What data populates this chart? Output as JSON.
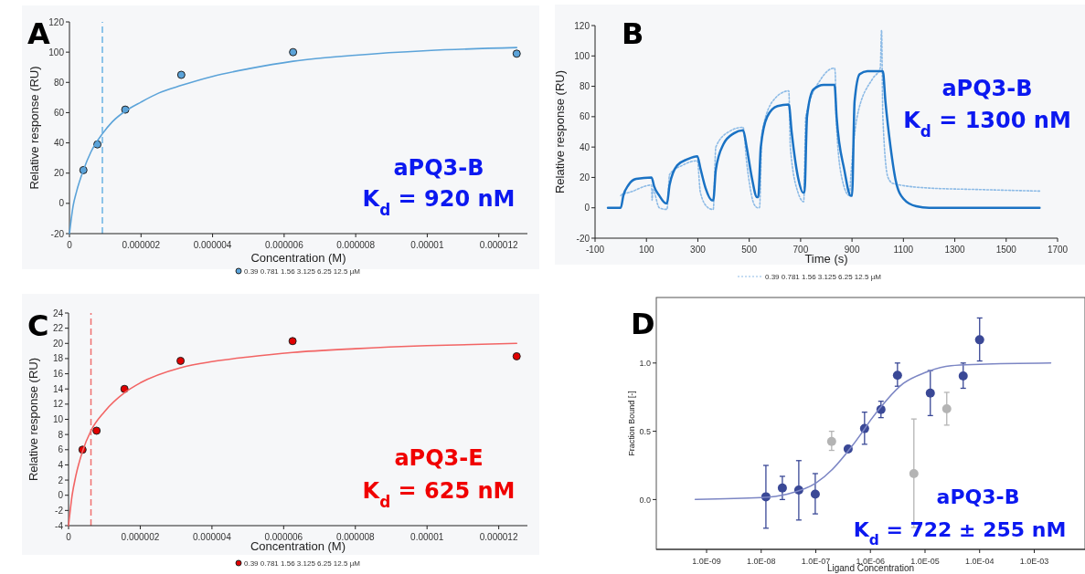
{
  "chart_data": [
    {
      "type": "scatter",
      "xlabel": "Concentration (M)",
      "ylabel": "Relative response (RU)",
      "annotations": [
        "A",
        "aPQ3-B",
        "K$_{d}$ = 920 nM"
      ],
      "xlim": [
        0,
        1.28e-05
      ],
      "ylim": [
        -20,
        120
      ],
      "xticks": [
        0,
        {
          "value": 2e-06,
          "label": "0.000002"
        },
        {
          "value": 4e-06,
          "label": "0.000004"
        },
        {
          "value": 6e-06,
          "label": "0.000006"
        },
        {
          "value": 8e-06,
          "label": "0.000008"
        },
        {
          "value": 1e-05,
          "label": "0.00001"
        },
        {
          "value": 1.2e-05,
          "label": "0.000012"
        }
      ],
      "yticks": [
        -20,
        0,
        20,
        40,
        60,
        80,
        100,
        120
      ],
      "legend": "bottom",
      "marker": "circle",
      "ref_lines": [
        {
          "axis": "x",
          "value": 9.2e-07,
          "color": "#6cb4e4",
          "line_style": "dashed"
        }
      ],
      "series": [
        {
          "name": "0.39  0.781  1.56  3.125  6.25  12.5 µM",
          "color": "#5ba3d9",
          "x": [
            3.9e-07,
            7.81e-07,
            1.56e-06,
            3.125e-06,
            6.25e-06,
            1.25e-05
          ],
          "values": [
            22,
            39,
            62,
            85,
            100,
            99
          ]
        },
        {
          "type": "line",
          "marker": "none",
          "color": "#5ba3d9",
          "x": [
            0,
            1e-07,
            2e-07,
            3.9e-07,
            6e-07,
            9.2e-07,
            1.2e-06,
            1.56e-06,
            2e-06,
            2.5e-06,
            3.125e-06,
            4e-06,
            5e-06,
            6.25e-06,
            8e-06,
            1e-05,
            1.25e-05
          ],
          "values": [
            -20,
            -2,
            8,
            22,
            34,
            46,
            54,
            61,
            67,
            73,
            78,
            84,
            89,
            94,
            98,
            101,
            103
          ]
        }
      ]
    },
    {
      "type": "line",
      "xlabel": "Time (s)",
      "ylabel": "Relative response (RU)",
      "annotations": [
        "B",
        "aPQ3-B",
        "K$_{d}$ = 1300 nM"
      ],
      "xlim": [
        -100,
        1700
      ],
      "ylim": [
        -20,
        120
      ],
      "xticks": [
        -100,
        100,
        300,
        500,
        700,
        900,
        1100,
        1300,
        1500,
        1700
      ],
      "yticks": [
        -20,
        0,
        20,
        40,
        60,
        80,
        100,
        120
      ],
      "legend": "bottom",
      "series": [
        {
          "name": "0.39  0.781  1.56  3.125  6.25  12.5 µM",
          "color": "#8dbbe6",
          "line_style": "dotted",
          "x": [
            0,
            5,
            30,
            120,
            122,
            125,
            150,
            175,
            180,
            190,
            240,
            298,
            310,
            340,
            355,
            360,
            370,
            420,
            476,
            490,
            520,
            534,
            540,
            550,
            600,
            654,
            660,
            690,
            712,
            720,
            780,
            832,
            835,
            838,
            860,
            890,
            895,
            920,
            980,
            1010,
            1015,
            1020,
            1040,
            1060,
            1200,
            1400,
            1630
          ],
          "values": [
            8,
            9,
            10,
            15,
            5,
            12,
            0,
            -1,
            -1,
            22,
            28,
            31,
            10,
            0,
            -1,
            -1,
            40,
            50,
            53,
            30,
            2,
            0,
            0,
            50,
            72,
            77,
            40,
            10,
            4,
            60,
            85,
            92,
            88,
            60,
            20,
            8,
            20,
            60,
            85,
            92,
            117,
            60,
            20,
            16,
            13,
            12,
            11
          ]
        },
        {
          "color": "#1a72c4",
          "line_style": "solid",
          "x": [
            -50,
            0,
            10,
            30,
            60,
            120,
            130,
            150,
            175,
            180,
            190,
            220,
            260,
            298,
            310,
            330,
            355,
            360,
            370,
            400,
            440,
            476,
            490,
            510,
            530,
            535,
            545,
            570,
            610,
            654,
            665,
            690,
            710,
            715,
            725,
            750,
            790,
            832,
            840,
            870,
            895,
            900,
            910,
            930,
            960,
            1020,
            1030,
            1050,
            1070,
            1100,
            1150,
            1200,
            1630
          ],
          "values": [
            0,
            0,
            8,
            15,
            19,
            20,
            14,
            8,
            3,
            3,
            15,
            28,
            32,
            34,
            26,
            13,
            5,
            5,
            25,
            42,
            49,
            51,
            40,
            20,
            7,
            7,
            40,
            60,
            67,
            68,
            50,
            20,
            10,
            10,
            60,
            78,
            81,
            81,
            60,
            25,
            8,
            8,
            70,
            88,
            90,
            90,
            70,
            40,
            18,
            6,
            1,
            0,
            0
          ]
        }
      ]
    },
    {
      "type": "scatter",
      "xlabel": "Concentration (M)",
      "ylabel": "Relative response (RU)",
      "annotations": [
        "C",
        "aPQ3-E",
        "K$_{d}$ = 625 nM"
      ],
      "xlim": [
        0,
        1.28e-05
      ],
      "ylim": [
        -4,
        24
      ],
      "xticks": [
        0,
        {
          "value": 2e-06,
          "label": "0.000002"
        },
        {
          "value": 4e-06,
          "label": "0.000004"
        },
        {
          "value": 6e-06,
          "label": "0.000006"
        },
        {
          "value": 8e-06,
          "label": "0.000008"
        },
        {
          "value": 1e-05,
          "label": "0.00001"
        },
        {
          "value": 1.2e-05,
          "label": "0.000012"
        }
      ],
      "yticks": [
        -4,
        -2,
        0,
        2,
        4,
        6,
        8,
        10,
        12,
        14,
        16,
        18,
        20,
        22,
        24
      ],
      "legend": "bottom",
      "marker": "circle",
      "ref_lines": [
        {
          "axis": "x",
          "value": 6.25e-07,
          "color": "#f07070",
          "line_style": "dashed"
        }
      ],
      "series": [
        {
          "name": "0.39  0.781  1.56  3.125  6.25  12.5 µM",
          "color": "#e00000",
          "x": [
            3.9e-07,
            7.81e-07,
            1.56e-06,
            3.125e-06,
            6.25e-06,
            1.25e-05
          ],
          "values": [
            6,
            8.5,
            14,
            17.7,
            20.3,
            18.3
          ]
        },
        {
          "type": "line",
          "marker": "none",
          "color": "#f26464",
          "x": [
            0,
            1e-07,
            2e-07,
            3.9e-07,
            6.25e-07,
            1e-06,
            1.56e-06,
            2e-06,
            3.125e-06,
            4e-06,
            5e-06,
            6.25e-06,
            8e-06,
            1e-05,
            1.25e-05
          ],
          "values": [
            -4,
            0,
            2.5,
            5.8,
            8.5,
            11,
            13.5,
            14.8,
            16.8,
            17.6,
            18.2,
            18.8,
            19.3,
            19.7,
            20
          ]
        }
      ]
    },
    {
      "type": "scatter",
      "xlabel": "Ligand Concentration",
      "ylabel": "Fraction Bound [-]",
      "annotations": [
        "D",
        "aPQ3-B",
        "K$_{d}$ = 722 ± 255 nM"
      ],
      "log": "x",
      "xlim": [
        1.2e-10,
        0.0085
      ],
      "ylim": [
        -0.365,
        1.48
      ],
      "xticks": [
        {
          "value": 1e-09,
          "label": "1.0E-09"
        },
        {
          "value": 1e-08,
          "label": "1.0E-08"
        },
        {
          "value": 1e-07,
          "label": "1.0E-07"
        },
        {
          "value": 1e-06,
          "label": "1.0E-06"
        },
        {
          "value": 1e-05,
          "label": "1.0E-05"
        },
        {
          "value": 0.0001,
          "label": "1.0E-04"
        },
        {
          "value": 0.001,
          "label": "1.0E-03"
        }
      ],
      "yticks": [
        {
          "value": 0,
          "label": "0.0"
        },
        {
          "value": 0.5,
          "label": "0.5"
        },
        {
          "value": 1,
          "label": "1.0"
        }
      ],
      "marker": "circle",
      "series": [
        {
          "color": "#3a4896",
          "x": [
            1.22e-08,
            2.44e-08,
            4.88e-08,
            9.77e-08,
            3.91e-07,
            7.81e-07,
            1.56e-06,
            3.13e-06,
            1.25e-05,
            5e-05,
            0.0001
          ],
          "values": [
            0.02,
            0.085,
            0.07,
            0.04,
            0.37,
            0.52,
            0.66,
            0.91,
            0.78,
            0.905,
            1.17
          ],
          "errors": [
            [
              -0.21,
              0.25
            ],
            [
              0,
              0.17
            ],
            [
              -0.15,
              0.285
            ],
            [
              -0.105,
              0.19
            ],
            null,
            [
              0.405,
              0.64
            ],
            [
              0.6,
              0.72
            ],
            [
              0.83,
              1
            ],
            [
              0.615,
              0.945
            ],
            [
              0.815,
              1
            ],
            [
              1.015,
              1.33
            ]
          ]
        },
        {
          "color": "#b4b4b4",
          "x": [
            1.95e-07,
            6.25e-06,
            2.5e-05
          ],
          "values": [
            0.425,
            0.19,
            0.665
          ],
          "errors": [
            [
              0.36,
              0.5
            ],
            [
              -0.205,
              0.59
            ],
            [
              0.545,
              0.785
            ]
          ]
        },
        {
          "type": "line",
          "marker": "none",
          "color": "#7c86c4",
          "x": [
            6.2e-10,
            1e-08,
            3e-08,
            1e-07,
            2e-07,
            4e-07,
            7e-07,
            1e-06,
            2e-06,
            4e-06,
            1e-05,
            3e-05,
            0.0001,
            0.002
          ],
          "values": [
            0.001,
            0.014,
            0.04,
            0.12,
            0.22,
            0.36,
            0.49,
            0.58,
            0.73,
            0.85,
            0.93,
            0.98,
            0.99,
            1
          ]
        }
      ]
    }
  ]
}
